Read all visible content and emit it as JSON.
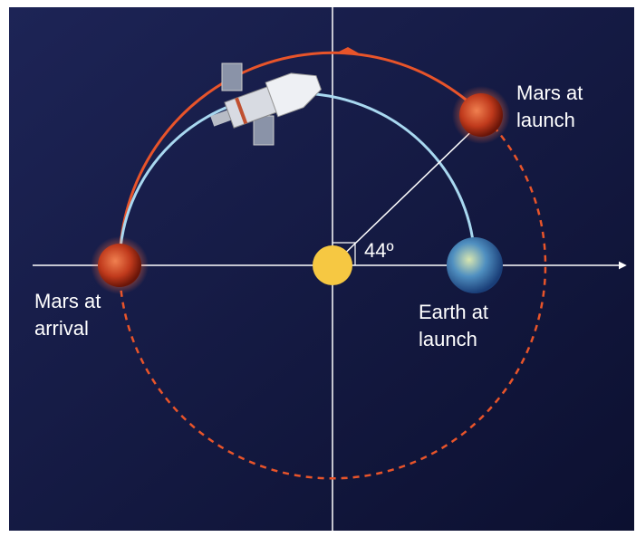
{
  "labels": {
    "mars_launch": [
      "Mars at",
      "launch"
    ],
    "mars_arrival": [
      "Mars at",
      "arrival"
    ],
    "earth_launch": [
      "Earth at",
      "launch"
    ],
    "angle": "44º"
  }
}
